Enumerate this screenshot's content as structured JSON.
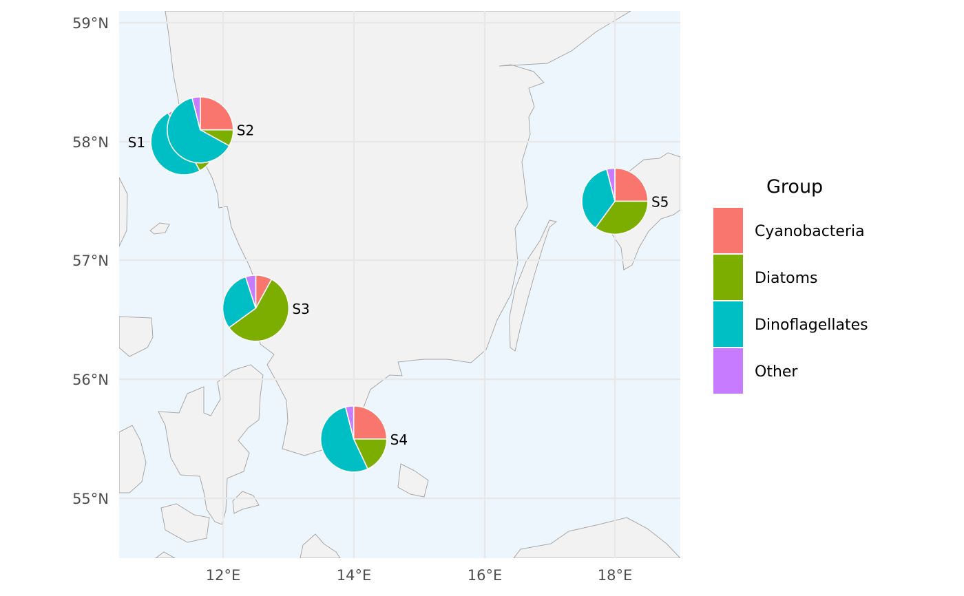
{
  "chart_data": {
    "type": "pie-map",
    "x_axis": {
      "ticks": [
        12,
        14,
        16,
        18
      ],
      "tick_labels": [
        "12°E",
        "14°E",
        "16°E",
        "18°E"
      ],
      "range": [
        10.4,
        19.0
      ]
    },
    "y_axis": {
      "ticks": [
        55,
        56,
        57,
        58,
        59
      ],
      "tick_labels": [
        "55°N",
        "56°N",
        "57°N",
        "58°N",
        "59°N"
      ],
      "range": [
        54.5,
        59.1
      ]
    },
    "grid": true,
    "legend": {
      "title": "Group",
      "placement": "right",
      "entries": [
        {
          "label": "Cyanobacteria",
          "color": "#F8766D"
        },
        {
          "label": "Diatoms",
          "color": "#7CAE00"
        },
        {
          "label": "Dinoflagellates",
          "color": "#00BFC4"
        },
        {
          "label": "Other",
          "color": "#C77CFF"
        }
      ]
    },
    "sites": [
      {
        "label": "S1",
        "lon": 11.4,
        "lat": 58.0,
        "values": [
          0.22,
          0.2,
          0.5,
          0.08
        ]
      },
      {
        "label": "S2",
        "lon": 11.65,
        "lat": 58.1,
        "values": [
          0.25,
          0.08,
          0.63,
          0.04
        ]
      },
      {
        "label": "S3",
        "lon": 12.5,
        "lat": 56.6,
        "values": [
          0.08,
          0.57,
          0.3,
          0.05
        ]
      },
      {
        "label": "S4",
        "lon": 14.0,
        "lat": 55.5,
        "values": [
          0.25,
          0.18,
          0.53,
          0.04
        ]
      },
      {
        "label": "S5",
        "lon": 18.0,
        "lat": 57.5,
        "values": [
          0.25,
          0.35,
          0.36,
          0.04
        ]
      }
    ]
  }
}
